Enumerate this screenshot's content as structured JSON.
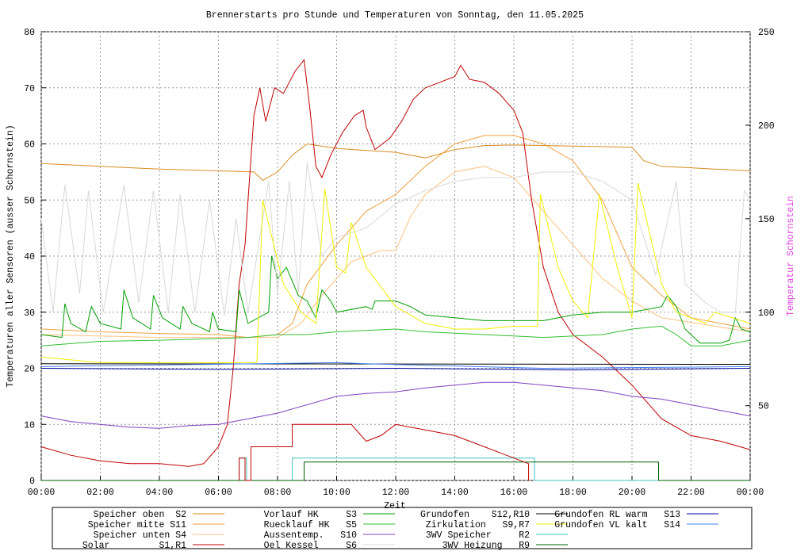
{
  "chart_data": {
    "type": "line",
    "title": "Brennerstarts pro Stunde und Temperaturen von Sonntag, den 11.05.2025",
    "xlabel": "Zeit",
    "ylabel": "Temperaturen aller Sensoren (ausser Schornstein)",
    "y2label": "Temperatur Schornstein",
    "y2label_color": "#e040e0",
    "grid": true,
    "xlim": [
      0,
      24
    ],
    "xticks": [
      {
        "value": 0,
        "label": "00:00"
      },
      {
        "value": 2,
        "label": "02:00"
      },
      {
        "value": 4,
        "label": "04:00"
      },
      {
        "value": 6,
        "label": "06:00"
      },
      {
        "value": 8,
        "label": "08:00"
      },
      {
        "value": 10,
        "label": "10:00"
      },
      {
        "value": 12,
        "label": "12:00"
      },
      {
        "value": 14,
        "label": "14:00"
      },
      {
        "value": 16,
        "label": "16:00"
      },
      {
        "value": 18,
        "label": "18:00"
      },
      {
        "value": 20,
        "label": "20:00"
      },
      {
        "value": 22,
        "label": "22:00"
      },
      {
        "value": 24,
        "label": "00:00"
      }
    ],
    "ylim": [
      0,
      80
    ],
    "yticks": [
      0,
      10,
      20,
      30,
      40,
      50,
      60,
      70,
      80
    ],
    "y2lim": [
      10,
      250
    ],
    "y2ticks": [
      50,
      100,
      150,
      200,
      250
    ],
    "series": [
      {
        "name": "Speicher oben  S2",
        "color": "#d98a1f",
        "x": [
          0,
          2,
          4,
          6,
          7.2,
          7.5,
          8,
          8.5,
          9,
          10,
          12,
          13,
          14,
          15,
          16,
          18,
          20,
          20.4,
          21,
          24
        ],
        "values": [
          56.5,
          56,
          55.5,
          55.2,
          55,
          53.5,
          55,
          58,
          60,
          59.2,
          58.5,
          57.5,
          59,
          59.7,
          59.8,
          59.6,
          59.4,
          57,
          56,
          55.2
        ]
      },
      {
        "name": "Speicher mitte S11",
        "color": "#f0a040",
        "x": [
          0,
          2,
          4,
          6,
          7,
          8,
          8.5,
          9,
          10,
          11,
          12,
          13,
          14,
          15,
          16,
          17,
          18,
          19,
          20,
          21,
          22,
          24
        ],
        "values": [
          27,
          26.5,
          26.2,
          26,
          25.5,
          26,
          28,
          35,
          42,
          48,
          51,
          56,
          60,
          61.5,
          61.5,
          60,
          57,
          50,
          38,
          33,
          29,
          27
        ]
      },
      {
        "name": "Speicher unten S4",
        "color": "#ffc080",
        "x": [
          0,
          4,
          8,
          8.8,
          9.5,
          10.5,
          11.5,
          12,
          12.5,
          13,
          14,
          15,
          16,
          17,
          18,
          19,
          20,
          21,
          24
        ],
        "values": [
          26,
          25.5,
          25.5,
          28,
          33,
          39,
          41,
          41,
          47,
          51,
          55,
          56,
          54,
          48,
          42,
          36,
          32,
          29,
          26.5
        ]
      },
      {
        "name": "Solar         S1,R1",
        "color": "#c00000",
        "x": [
          0,
          1,
          2,
          3,
          4,
          5,
          5.5,
          6,
          6.3,
          6.5,
          6.7,
          6.9,
          7,
          7.2,
          7.4,
          7.6,
          7.9,
          8.2,
          8.6,
          8.9,
          9.1,
          9.3,
          9.5,
          9.8,
          10.2,
          10.6,
          10.9,
          11,
          11.3,
          11.8,
          12.2,
          12.6,
          13,
          13.5,
          14,
          14.2,
          14.5,
          15,
          15.5,
          16,
          16.3,
          16.6,
          17,
          17.5,
          18,
          19,
          20,
          21,
          22,
          23,
          24
        ],
        "values": [
          6,
          4.5,
          3.5,
          3,
          3,
          2.5,
          3,
          6,
          10,
          20,
          35,
          42,
          50,
          65,
          70,
          64,
          70,
          69,
          73,
          75,
          66,
          56,
          54,
          58,
          62,
          65,
          66,
          63,
          59,
          61,
          64,
          68,
          70,
          71,
          72,
          74,
          71.5,
          71,
          69,
          66,
          62,
          50,
          38,
          30,
          26,
          22,
          17,
          11,
          8,
          7,
          5.5
        ]
      },
      {
        "name": "Vorlauf HK     S3",
        "color": "#00a000",
        "x": [
          0,
          0.7,
          0.8,
          1,
          1.5,
          1.7,
          2,
          2.7,
          2.8,
          3.1,
          3.7,
          3.8,
          4.1,
          4.7,
          4.8,
          5.1,
          5.7,
          5.8,
          6,
          6.6,
          6.7,
          7,
          7.7,
          7.8,
          8,
          8.3,
          8.7,
          9,
          9.3,
          9.5,
          9.8,
          10,
          11,
          11.2,
          11.3,
          12,
          12.5,
          13,
          14,
          15,
          17,
          18,
          19,
          20,
          21,
          21.2,
          21.5,
          21.8,
          22.3,
          23,
          23.3,
          23.5,
          23.7,
          24
        ],
        "values": [
          26,
          25.5,
          31.5,
          28,
          26.5,
          31,
          28,
          27,
          34,
          29,
          27,
          33,
          29,
          27,
          31,
          28,
          26.5,
          30,
          27,
          26.5,
          34,
          28,
          30,
          40,
          36,
          38,
          33,
          32,
          29,
          34,
          32,
          30,
          31,
          30.5,
          32,
          32,
          31,
          29.5,
          29,
          28.5,
          28.5,
          29.5,
          30,
          30,
          31,
          33,
          31,
          27,
          24.5,
          24.5,
          25,
          29,
          27,
          26.5
        ]
      },
      {
        "name": "Ruecklauf HK   S5",
        "color": "#30c030",
        "x": [
          0,
          2,
          4,
          6,
          7,
          8,
          9,
          10,
          12,
          13,
          15,
          17,
          19,
          20,
          21,
          21.5,
          22,
          23,
          24
        ],
        "values": [
          24,
          24.8,
          25,
          25.3,
          25.5,
          26,
          26,
          26.5,
          27,
          26.5,
          26,
          25.5,
          26,
          27,
          27.5,
          26,
          24,
          24,
          25
        ]
      },
      {
        "name": "Aussentemp.   S10",
        "color": "#8040c0",
        "x": [
          0,
          1,
          2,
          3,
          4,
          5,
          6,
          7,
          8,
          9,
          10,
          11,
          12,
          13,
          14,
          15,
          16,
          17,
          18,
          19,
          20,
          21,
          22,
          23,
          24
        ],
        "values": [
          11.5,
          10.5,
          10,
          9.5,
          9.3,
          9.8,
          10,
          11,
          12,
          13.5,
          15,
          15.5,
          15.8,
          16.5,
          17,
          17.5,
          17.5,
          17,
          16.5,
          16,
          15,
          14.5,
          13.5,
          12.5,
          11.5
        ]
      },
      {
        "name": "Oel Kessel     S6",
        "color": "#d8d8d8",
        "axis": "y2",
        "x": [
          0,
          0.4,
          0.8,
          1.3,
          1.6,
          2.1,
          2.8,
          3.3,
          3.8,
          4.3,
          4.7,
          5.2,
          5.7,
          6.2,
          6.6,
          7,
          7.7,
          8,
          8.4,
          8.7,
          9,
          9.5,
          10,
          11,
          12,
          13,
          14,
          15,
          16,
          17,
          18,
          19,
          20,
          20.8,
          21.5,
          21.8,
          22.5,
          23,
          23.5,
          23.8,
          24
        ],
        "values": [
          150,
          100,
          168,
          110,
          165,
          100,
          168,
          105,
          165,
          100,
          163,
          100,
          160,
          98,
          150,
          100,
          170,
          110,
          170,
          110,
          180,
          130,
          140,
          145,
          158,
          165,
          170,
          172,
          172,
          175,
          175,
          170,
          160,
          120,
          170,
          115,
          105,
          100,
          100,
          165,
          160
        ]
      },
      {
        "name": "Grundofen    S12,R10",
        "color": "#000000",
        "x": [
          0,
          24
        ],
        "values": [
          20.8,
          20.7
        ]
      },
      {
        "name": "Zirkulation   S9,R7",
        "color": "#f0f000",
        "x": [
          0,
          2,
          7.3,
          7.5,
          8.2,
          8.8,
          9.3,
          9.6,
          10,
          10.3,
          10.5,
          11,
          12,
          13,
          14,
          15,
          16,
          16.8,
          16.9,
          17.5,
          18,
          18.5,
          18.9,
          19.5,
          20,
          20.2,
          21,
          21.5,
          22,
          22.5,
          22.8,
          24
        ],
        "values": [
          22,
          21,
          21,
          50,
          35,
          30,
          28,
          52,
          38,
          37,
          46,
          38,
          31,
          28,
          27,
          27,
          27.5,
          27.5,
          51,
          38,
          32,
          29,
          51,
          38,
          29,
          53,
          35,
          30,
          29,
          28,
          30,
          28
        ]
      },
      {
        "name": "3WV Speicher     R2",
        "color": "#40c0c0",
        "x": [
          0,
          6.7,
          6.7,
          6.95,
          6.95,
          8.5,
          8.5,
          16.7,
          16.7,
          24
        ],
        "values": [
          0,
          0,
          4,
          4,
          0,
          0,
          4,
          4,
          0,
          0
        ]
      },
      {
        "name": "3WV Heizung   R9",
        "color": "#006000",
        "x": [
          0,
          8.9,
          8.9,
          20.9,
          20.9,
          24
        ],
        "values": [
          0,
          0,
          3.3,
          3.3,
          0,
          0
        ]
      },
      {
        "color": "#c00000",
        "x": [
          6.7,
          6.7,
          6.9,
          6.9,
          7.1,
          7.1,
          8.5,
          8.5,
          10.5,
          11,
          11.5,
          12,
          13,
          14,
          15,
          16,
          16.5,
          16.5
        ],
        "values": [
          0,
          4,
          4,
          0,
          0,
          6,
          6,
          10,
          10,
          7,
          8,
          10,
          9,
          8,
          6,
          4,
          3,
          0
        ]
      },
      {
        "name": "Grundofen RL warm   S13",
        "color": "#0000a0",
        "x": [
          0,
          6,
          12,
          18,
          24
        ],
        "values": [
          20,
          19.8,
          20,
          19.7,
          20
        ]
      },
      {
        "name": "Grundofen VL kalt   S14",
        "color": "#4080f0",
        "x": [
          0,
          10,
          11,
          17,
          24
        ],
        "values": [
          20.3,
          21,
          20.8,
          20,
          20.3
        ]
      }
    ]
  }
}
